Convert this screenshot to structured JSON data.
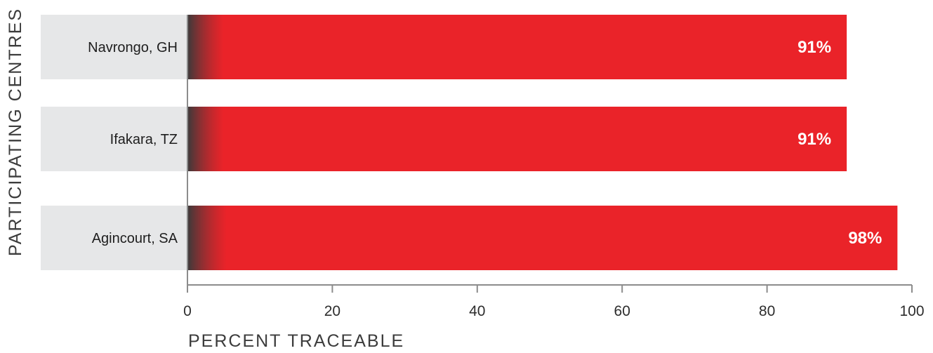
{
  "chart_data": {
    "type": "bar",
    "orientation": "horizontal",
    "categories": [
      "Navrongo, GH",
      "Ifakara, TZ",
      "Agincourt, SA"
    ],
    "values": [
      91,
      91,
      98
    ],
    "data_labels": [
      "91%",
      "91%",
      "98%"
    ],
    "xlabel": "PERCENT TRACEABLE",
    "ylabel": "PARTICIPATING CENTRES",
    "xlim": [
      0,
      100
    ],
    "x_ticks": [
      "0",
      "20",
      "40",
      "60",
      "80",
      "100"
    ],
    "grid": false
  },
  "colors": {
    "bar": "#ea2329",
    "bar_shadow": "#3a3a3a",
    "category_band": "#e6e7e8",
    "axis": "#8c8c8c"
  }
}
